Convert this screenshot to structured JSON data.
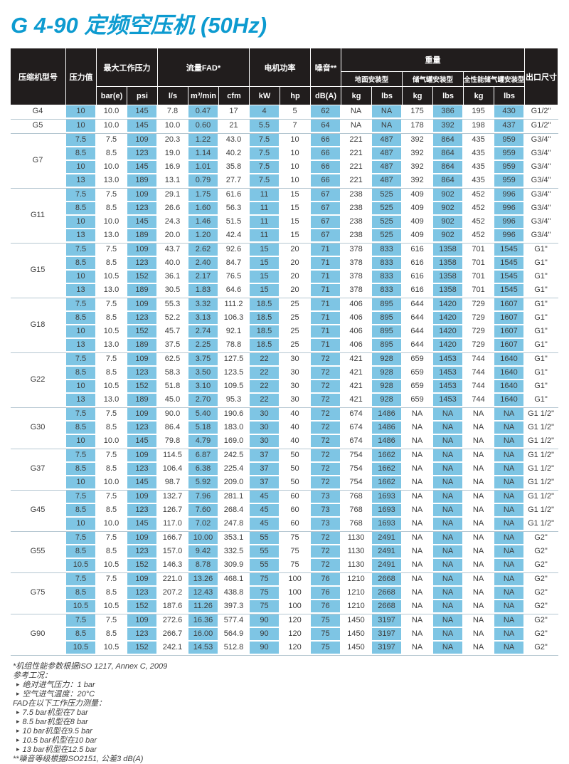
{
  "page": {
    "title": "G 4-90 定频空压机 (50Hz)"
  },
  "colors": {
    "title": "#0d9bd0",
    "cell_blue": "#7ec5e4",
    "header_bg": "#211d1d",
    "separator_line": "#b5c7d1"
  },
  "table": {
    "headers": {
      "model": "压缩机型号",
      "pressure_value": "压力值",
      "max_working_pressure": "最大工作压力",
      "fad": "流量FAD*",
      "motor_power": "电机功率",
      "noise": "噪音**",
      "weight": "重量",
      "outlet_size": "出口尺寸",
      "weight_sub": [
        "地面安装型",
        "储气罐安装型",
        "全性能储气罐安装型"
      ],
      "units": [
        "bar(e)",
        "psi",
        "l/s",
        "m³/min",
        "cfm",
        "kW",
        "hp",
        "dB(A)",
        "kg",
        "lbs",
        "kg",
        "lbs",
        "kg",
        "lbs"
      ]
    },
    "groups": [
      {
        "model": "G4",
        "rows": [
          [
            "10",
            "10.0",
            "145",
            "7.8",
            "0.47",
            "17",
            "4",
            "5",
            "62",
            "NA",
            "NA",
            "175",
            "386",
            "195",
            "430",
            "G1/2\""
          ]
        ]
      },
      {
        "model": "G5",
        "rows": [
          [
            "10",
            "10.0",
            "145",
            "10.0",
            "0.60",
            "21",
            "5.5",
            "7",
            "64",
            "NA",
            "NA",
            "178",
            "392",
            "198",
            "437",
            "G1/2\""
          ]
        ]
      },
      {
        "model": "G7",
        "rows": [
          [
            "7.5",
            "7.5",
            "109",
            "20.3",
            "1.22",
            "43.0",
            "7.5",
            "10",
            "66",
            "221",
            "487",
            "392",
            "864",
            "435",
            "959",
            "G3/4\""
          ],
          [
            "8.5",
            "8.5",
            "123",
            "19.0",
            "1.14",
            "40.2",
            "7.5",
            "10",
            "66",
            "221",
            "487",
            "392",
            "864",
            "435",
            "959",
            "G3/4\""
          ],
          [
            "10",
            "10.0",
            "145",
            "16.9",
            "1.01",
            "35.8",
            "7.5",
            "10",
            "66",
            "221",
            "487",
            "392",
            "864",
            "435",
            "959",
            "G3/4\""
          ],
          [
            "13",
            "13.0",
            "189",
            "13.1",
            "0.79",
            "27.7",
            "7.5",
            "10",
            "66",
            "221",
            "487",
            "392",
            "864",
            "435",
            "959",
            "G3/4\""
          ]
        ]
      },
      {
        "model": "G11",
        "rows": [
          [
            "7.5",
            "7.5",
            "109",
            "29.1",
            "1.75",
            "61.6",
            "11",
            "15",
            "67",
            "238",
            "525",
            "409",
            "902",
            "452",
            "996",
            "G3/4\""
          ],
          [
            "8.5",
            "8.5",
            "123",
            "26.6",
            "1.60",
            "56.3",
            "11",
            "15",
            "67",
            "238",
            "525",
            "409",
            "902",
            "452",
            "996",
            "G3/4\""
          ],
          [
            "10",
            "10.0",
            "145",
            "24.3",
            "1.46",
            "51.5",
            "11",
            "15",
            "67",
            "238",
            "525",
            "409",
            "902",
            "452",
            "996",
            "G3/4\""
          ],
          [
            "13",
            "13.0",
            "189",
            "20.0",
            "1.20",
            "42.4",
            "11",
            "15",
            "67",
            "238",
            "525",
            "409",
            "902",
            "452",
            "996",
            "G3/4\""
          ]
        ]
      },
      {
        "model": "G15",
        "rows": [
          [
            "7.5",
            "7.5",
            "109",
            "43.7",
            "2.62",
            "92.6",
            "15",
            "20",
            "71",
            "378",
            "833",
            "616",
            "1358",
            "701",
            "1545",
            "G1\""
          ],
          [
            "8.5",
            "8.5",
            "123",
            "40.0",
            "2.40",
            "84.7",
            "15",
            "20",
            "71",
            "378",
            "833",
            "616",
            "1358",
            "701",
            "1545",
            "G1\""
          ],
          [
            "10",
            "10.5",
            "152",
            "36.1",
            "2.17",
            "76.5",
            "15",
            "20",
            "71",
            "378",
            "833",
            "616",
            "1358",
            "701",
            "1545",
            "G1\""
          ],
          [
            "13",
            "13.0",
            "189",
            "30.5",
            "1.83",
            "64.6",
            "15",
            "20",
            "71",
            "378",
            "833",
            "616",
            "1358",
            "701",
            "1545",
            "G1\""
          ]
        ]
      },
      {
        "model": "G18",
        "rows": [
          [
            "7.5",
            "7.5",
            "109",
            "55.3",
            "3.32",
            "111.2",
            "18.5",
            "25",
            "71",
            "406",
            "895",
            "644",
            "1420",
            "729",
            "1607",
            "G1\""
          ],
          [
            "8.5",
            "8.5",
            "123",
            "52.2",
            "3.13",
            "106.3",
            "18.5",
            "25",
            "71",
            "406",
            "895",
            "644",
            "1420",
            "729",
            "1607",
            "G1\""
          ],
          [
            "10",
            "10.5",
            "152",
            "45.7",
            "2.74",
            "92.1",
            "18.5",
            "25",
            "71",
            "406",
            "895",
            "644",
            "1420",
            "729",
            "1607",
            "G1\""
          ],
          [
            "13",
            "13.0",
            "189",
            "37.5",
            "2.25",
            "78.8",
            "18.5",
            "25",
            "71",
            "406",
            "895",
            "644",
            "1420",
            "729",
            "1607",
            "G1\""
          ]
        ]
      },
      {
        "model": "G22",
        "rows": [
          [
            "7.5",
            "7.5",
            "109",
            "62.5",
            "3.75",
            "127.5",
            "22",
            "30",
            "72",
            "421",
            "928",
            "659",
            "1453",
            "744",
            "1640",
            "G1\""
          ],
          [
            "8.5",
            "8.5",
            "123",
            "58.3",
            "3.50",
            "123.5",
            "22",
            "30",
            "72",
            "421",
            "928",
            "659",
            "1453",
            "744",
            "1640",
            "G1\""
          ],
          [
            "10",
            "10.5",
            "152",
            "51.8",
            "3.10",
            "109.5",
            "22",
            "30",
            "72",
            "421",
            "928",
            "659",
            "1453",
            "744",
            "1640",
            "G1\""
          ],
          [
            "13",
            "13.0",
            "189",
            "45.0",
            "2.70",
            "95.3",
            "22",
            "30",
            "72",
            "421",
            "928",
            "659",
            "1453",
            "744",
            "1640",
            "G1\""
          ]
        ]
      },
      {
        "model": "G30",
        "rows": [
          [
            "7.5",
            "7.5",
            "109",
            "90.0",
            "5.40",
            "190.6",
            "30",
            "40",
            "72",
            "674",
            "1486",
            "NA",
            "NA",
            "NA",
            "NA",
            "G1 1/2\""
          ],
          [
            "8.5",
            "8.5",
            "123",
            "86.4",
            "5.18",
            "183.0",
            "30",
            "40",
            "72",
            "674",
            "1486",
            "NA",
            "NA",
            "NA",
            "NA",
            "G1 1/2\""
          ],
          [
            "10",
            "10.0",
            "145",
            "79.8",
            "4.79",
            "169.0",
            "30",
            "40",
            "72",
            "674",
            "1486",
            "NA",
            "NA",
            "NA",
            "NA",
            "G1 1/2\""
          ]
        ]
      },
      {
        "model": "G37",
        "rows": [
          [
            "7.5",
            "7.5",
            "109",
            "114.5",
            "6.87",
            "242.5",
            "37",
            "50",
            "72",
            "754",
            "1662",
            "NA",
            "NA",
            "NA",
            "NA",
            "G1 1/2\""
          ],
          [
            "8.5",
            "8.5",
            "123",
            "106.4",
            "6.38",
            "225.4",
            "37",
            "50",
            "72",
            "754",
            "1662",
            "NA",
            "NA",
            "NA",
            "NA",
            "G1 1/2\""
          ],
          [
            "10",
            "10.0",
            "145",
            "98.7",
            "5.92",
            "209.0",
            "37",
            "50",
            "72",
            "754",
            "1662",
            "NA",
            "NA",
            "NA",
            "NA",
            "G1 1/2\""
          ]
        ]
      },
      {
        "model": "G45",
        "rows": [
          [
            "7.5",
            "7.5",
            "109",
            "132.7",
            "7.96",
            "281.1",
            "45",
            "60",
            "73",
            "768",
            "1693",
            "NA",
            "NA",
            "NA",
            "NA",
            "G1 1/2\""
          ],
          [
            "8.5",
            "8.5",
            "123",
            "126.7",
            "7.60",
            "268.4",
            "45",
            "60",
            "73",
            "768",
            "1693",
            "NA",
            "NA",
            "NA",
            "NA",
            "G1 1/2\""
          ],
          [
            "10",
            "10.0",
            "145",
            "117.0",
            "7.02",
            "247.8",
            "45",
            "60",
            "73",
            "768",
            "1693",
            "NA",
            "NA",
            "NA",
            "NA",
            "G1 1/2\""
          ]
        ]
      },
      {
        "model": "G55",
        "rows": [
          [
            "7.5",
            "7.5",
            "109",
            "166.7",
            "10.00",
            "353.1",
            "55",
            "75",
            "72",
            "1130",
            "2491",
            "NA",
            "NA",
            "NA",
            "NA",
            "G2\""
          ],
          [
            "8.5",
            "8.5",
            "123",
            "157.0",
            "9.42",
            "332.5",
            "55",
            "75",
            "72",
            "1130",
            "2491",
            "NA",
            "NA",
            "NA",
            "NA",
            "G2\""
          ],
          [
            "10.5",
            "10.5",
            "152",
            "146.3",
            "8.78",
            "309.9",
            "55",
            "75",
            "72",
            "1130",
            "2491",
            "NA",
            "NA",
            "NA",
            "NA",
            "G2\""
          ]
        ]
      },
      {
        "model": "G75",
        "rows": [
          [
            "7.5",
            "7.5",
            "109",
            "221.0",
            "13.26",
            "468.1",
            "75",
            "100",
            "76",
            "1210",
            "2668",
            "NA",
            "NA",
            "NA",
            "NA",
            "G2\""
          ],
          [
            "8.5",
            "8.5",
            "123",
            "207.2",
            "12.43",
            "438.8",
            "75",
            "100",
            "76",
            "1210",
            "2668",
            "NA",
            "NA",
            "NA",
            "NA",
            "G2\""
          ],
          [
            "10.5",
            "10.5",
            "152",
            "187.6",
            "11.26",
            "397.3",
            "75",
            "100",
            "76",
            "1210",
            "2668",
            "NA",
            "NA",
            "NA",
            "NA",
            "G2\""
          ]
        ]
      },
      {
        "model": "G90",
        "rows": [
          [
            "7.5",
            "7.5",
            "109",
            "272.6",
            "16.36",
            "577.4",
            "90",
            "120",
            "75",
            "1450",
            "3197",
            "NA",
            "NA",
            "NA",
            "NA",
            "G2\""
          ],
          [
            "8.5",
            "8.5",
            "123",
            "266.7",
            "16.00",
            "564.9",
            "90",
            "120",
            "75",
            "1450",
            "3197",
            "NA",
            "NA",
            "NA",
            "NA",
            "G2\""
          ],
          [
            "10.5",
            "10.5",
            "152",
            "242.1",
            "14.53",
            "512.8",
            "90",
            "120",
            "75",
            "1450",
            "3197",
            "NA",
            "NA",
            "NA",
            "NA",
            "G2\""
          ]
        ]
      }
    ]
  },
  "footnotes": [
    {
      "text": "*机组性能参数根据ISO 1217, Annex C, 2009",
      "bullet": false
    },
    {
      "text": "参考工况：",
      "bullet": false
    },
    {
      "text": "绝对进气压力：1 bar",
      "bullet": true
    },
    {
      "text": "空气进气温度：20°C",
      "bullet": true
    },
    {
      "text": "FAD在以下工作压力测量：",
      "bullet": false
    },
    {
      "text": "7.5 bar机型在7 bar",
      "bullet": true
    },
    {
      "text": "8.5 bar机型在8 bar",
      "bullet": true
    },
    {
      "text": "10 bar机型在9.5 bar",
      "bullet": true
    },
    {
      "text": "10.5 bar机型在10 bar",
      "bullet": true
    },
    {
      "text": "13 bar机型在12.5 bar",
      "bullet": true
    },
    {
      "text": "**噪音等级根据ISO2151, 公差3 dB(A)",
      "bullet": false
    }
  ],
  "bullet_glyph": "▸"
}
